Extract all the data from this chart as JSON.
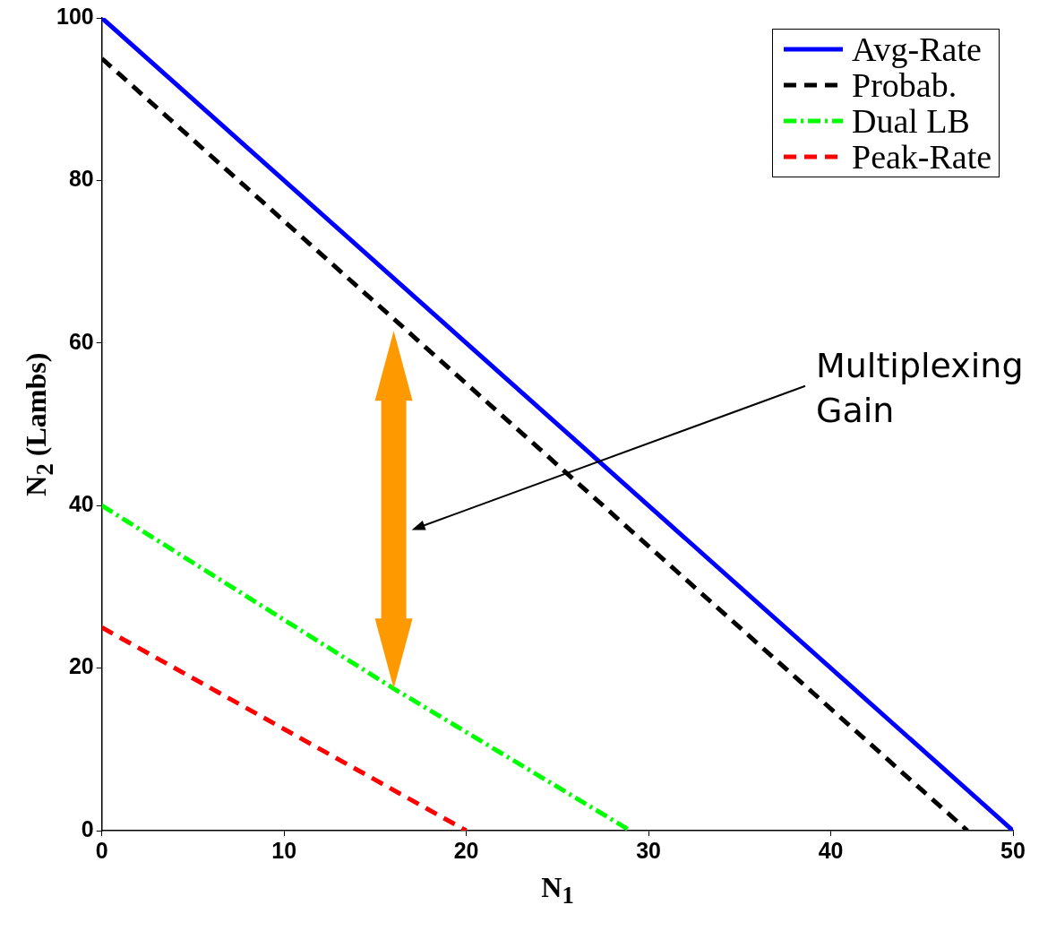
{
  "chart_data": {
    "type": "line",
    "xlabel": "N$_{1}$",
    "ylabel": "N$_{2}$ (Lambs)",
    "xlim": [
      0,
      50
    ],
    "ylim": [
      0,
      100
    ],
    "xticks": [
      0,
      10,
      20,
      30,
      40,
      50
    ],
    "yticks": [
      0,
      20,
      40,
      60,
      80,
      100
    ],
    "legend": "top right",
    "marker": "none",
    "annotations": [
      "Multiplexing Gain"
    ],
    "series": [
      {
        "name": "Avg-Rate",
        "color": "#0000ff",
        "line_style": "solid",
        "x": [
          0,
          50
        ],
        "values": [
          100,
          0
        ]
      },
      {
        "name": "Probab.",
        "color": "#000000",
        "line_style": "dashed",
        "x": [
          0,
          47.5
        ],
        "values": [
          95,
          0
        ]
      },
      {
        "name": "Dual LB",
        "color": "#00ff00",
        "line_style": "dashdot",
        "x": [
          0,
          16,
          29
        ],
        "values": [
          40,
          17.5,
          0
        ]
      },
      {
        "name": "Peak-Rate",
        "color": "#ff0000",
        "line_style": "dashed",
        "x": [
          0,
          20
        ],
        "values": [
          25,
          0
        ]
      }
    ]
  }
}
